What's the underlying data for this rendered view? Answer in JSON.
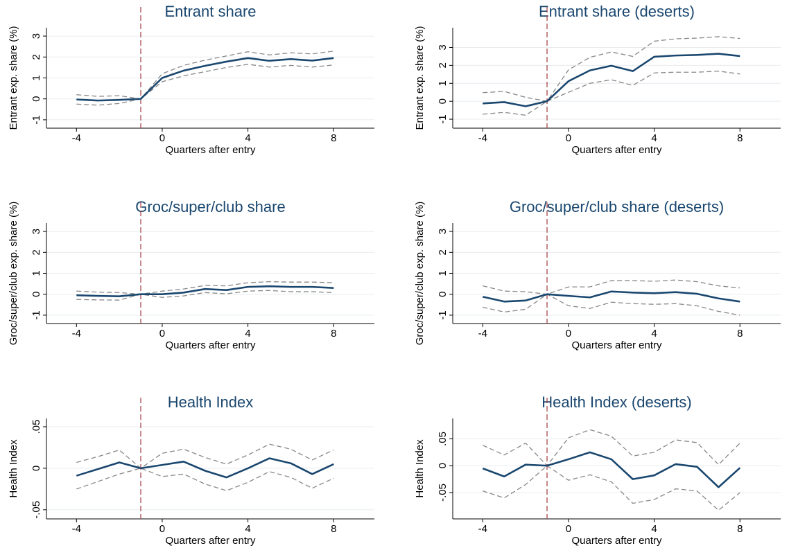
{
  "chart_data": [
    {
      "type": "line",
      "title": "Entrant share",
      "ylabel": "Entrant exp. share (%)",
      "xlabel": "Quarters after entry",
      "x": [
        -4,
        -3,
        -2,
        -1,
        0,
        1,
        2,
        3,
        4,
        5,
        6,
        7,
        8
      ],
      "xlim": [
        -5.4,
        9.9
      ],
      "xticks": [
        -4,
        0,
        4,
        8
      ],
      "ylim": [
        -1.4,
        3.4
      ],
      "yticks": [
        -1,
        0,
        1,
        2,
        3
      ],
      "grid": true,
      "vline": -1,
      "vline_color": "#a0393d",
      "series": [
        {
          "color": "#888888",
          "dash": true,
          "values": [
            0.2,
            0.12,
            0.15,
            0,
            1.2,
            1.6,
            1.85,
            2.05,
            2.25,
            2.1,
            2.2,
            2.15,
            2.28
          ]
        },
        {
          "color": "#888888",
          "dash": true,
          "values": [
            -0.25,
            -0.3,
            -0.22,
            0,
            0.82,
            1.1,
            1.3,
            1.5,
            1.65,
            1.52,
            1.6,
            1.52,
            1.62
          ]
        },
        {
          "color": "#1a476f",
          "dash": false,
          "values": [
            -0.03,
            -0.08,
            -0.05,
            0,
            1.0,
            1.35,
            1.58,
            1.78,
            1.95,
            1.82,
            1.9,
            1.83,
            1.95
          ]
        }
      ]
    },
    {
      "type": "line",
      "title": "Entrant share (deserts)",
      "ylabel": "Entrant exp. share (%)",
      "xlabel": "Quarters after entry",
      "x": [
        -4,
        -3,
        -2,
        -1,
        0,
        1,
        2,
        3,
        4,
        5,
        6,
        7,
        8
      ],
      "xlim": [
        -5.4,
        9.9
      ],
      "xticks": [
        -4,
        0,
        4,
        8
      ],
      "ylim": [
        -1.5,
        4.1
      ],
      "yticks": [
        -1,
        0,
        1,
        2,
        3
      ],
      "grid": true,
      "vline": -1,
      "vline_color": "#a0393d",
      "series": [
        {
          "color": "#888888",
          "dash": true,
          "values": [
            0.48,
            0.55,
            0.22,
            0,
            1.75,
            2.45,
            2.75,
            2.5,
            3.35,
            3.48,
            3.52,
            3.6,
            3.5
          ]
        },
        {
          "color": "#888888",
          "dash": true,
          "values": [
            -0.72,
            -0.62,
            -0.78,
            0,
            0.5,
            1.0,
            1.2,
            0.88,
            1.58,
            1.62,
            1.62,
            1.68,
            1.52
          ]
        },
        {
          "color": "#1a476f",
          "dash": false,
          "values": [
            -0.12,
            -0.05,
            -0.28,
            0,
            1.12,
            1.72,
            1.98,
            1.68,
            2.48,
            2.55,
            2.58,
            2.65,
            2.52
          ]
        }
      ]
    },
    {
      "type": "line",
      "title": "Groc/super/club share",
      "ylabel": "Groc/super/club exp. share (%)",
      "xlabel": "Quarters after entry",
      "x": [
        -4,
        -3,
        -2,
        -1,
        0,
        1,
        2,
        3,
        4,
        5,
        6,
        7,
        8
      ],
      "xlim": [
        -5.4,
        9.9
      ],
      "xticks": [
        -4,
        0,
        4,
        8
      ],
      "ylim": [
        -1.4,
        3.4
      ],
      "yticks": [
        -1,
        0,
        1,
        2,
        3
      ],
      "grid": true,
      "vline": -1,
      "vline_color": "#a0393d",
      "series": [
        {
          "color": "#888888",
          "dash": true,
          "values": [
            0.15,
            0.1,
            0.08,
            0,
            0.15,
            0.25,
            0.42,
            0.4,
            0.55,
            0.6,
            0.58,
            0.58,
            0.55
          ]
        },
        {
          "color": "#888888",
          "dash": true,
          "values": [
            -0.25,
            -0.27,
            -0.28,
            0,
            -0.15,
            -0.08,
            0.08,
            0.02,
            0.15,
            0.18,
            0.12,
            0.12,
            0.08
          ]
        },
        {
          "color": "#1a476f",
          "dash": false,
          "values": [
            -0.05,
            -0.08,
            -0.1,
            0,
            0,
            0.08,
            0.25,
            0.2,
            0.35,
            0.38,
            0.35,
            0.35,
            0.3
          ]
        }
      ]
    },
    {
      "type": "line",
      "title": "Groc/super/club share (deserts)",
      "ylabel": "Groc/super/club exp. share (%)",
      "xlabel": "Quarters after entry",
      "x": [
        -4,
        -3,
        -2,
        -1,
        0,
        1,
        2,
        3,
        4,
        5,
        6,
        7,
        8
      ],
      "xlim": [
        -5.4,
        9.9
      ],
      "xticks": [
        -4,
        0,
        4,
        8
      ],
      "ylim": [
        -1.4,
        3.4
      ],
      "yticks": [
        -1,
        0,
        1,
        2,
        3
      ],
      "grid": true,
      "vline": -1,
      "vline_color": "#a0393d",
      "series": [
        {
          "color": "#888888",
          "dash": true,
          "values": [
            0.4,
            0.15,
            0.12,
            0,
            0.35,
            0.35,
            0.65,
            0.65,
            0.62,
            0.68,
            0.6,
            0.4,
            0.3
          ]
        },
        {
          "color": "#888888",
          "dash": true,
          "values": [
            -0.62,
            -0.85,
            -0.72,
            0,
            -0.55,
            -0.68,
            -0.38,
            -0.45,
            -0.48,
            -0.45,
            -0.55,
            -0.82,
            -1.0
          ]
        },
        {
          "color": "#1a476f",
          "dash": false,
          "values": [
            -0.12,
            -0.35,
            -0.3,
            0,
            -0.08,
            -0.15,
            0.13,
            0.08,
            0.05,
            0.1,
            0.02,
            -0.2,
            -0.35
          ]
        }
      ]
    },
    {
      "type": "line",
      "title": "Health Index",
      "ylabel": "Health Index",
      "xlabel": "Quarters after entry",
      "x": [
        -4,
        -3,
        -2,
        -1,
        0,
        1,
        2,
        3,
        4,
        5,
        6,
        7,
        8
      ],
      "xlim": [
        -5.4,
        9.9
      ],
      "xticks": [
        -4,
        0,
        4,
        8
      ],
      "ylim": [
        -0.061,
        0.06
      ],
      "yticks": [
        {
          "value": -0.05,
          "label": "-.05"
        },
        0,
        {
          "value": 0.05,
          "label": ".05"
        }
      ],
      "grid": true,
      "vline": -1,
      "vline_color": "#a0393d",
      "series": [
        {
          "color": "#888888",
          "dash": true,
          "values": [
            0.007,
            0.014,
            0.022,
            0,
            0.018,
            0.023,
            0.013,
            0.005,
            0.016,
            0.029,
            0.023,
            0.01,
            0.022
          ]
        },
        {
          "color": "#888888",
          "dash": true,
          "values": [
            -0.025,
            -0.016,
            -0.007,
            0,
            -0.01,
            -0.007,
            -0.019,
            -0.027,
            -0.017,
            -0.004,
            -0.011,
            -0.024,
            -0.012
          ]
        },
        {
          "color": "#1a476f",
          "dash": false,
          "values": [
            -0.009,
            -0.001,
            0.007,
            0,
            0.004,
            0.008,
            -0.003,
            -0.011,
            0,
            0.012,
            0.006,
            -0.007,
            0.005
          ]
        }
      ]
    },
    {
      "type": "line",
      "title": "Health Index (deserts)",
      "ylabel": "Health Index",
      "xlabel": "Quarters after entry",
      "x": [
        -4,
        -3,
        -2,
        -1,
        0,
        1,
        2,
        3,
        4,
        5,
        6,
        7,
        8
      ],
      "xlim": [
        -5.4,
        9.9
      ],
      "xticks": [
        -4,
        0,
        4,
        8
      ],
      "ylim": [
        -0.099,
        0.088
      ],
      "yticks": [
        {
          "value": -0.05,
          "label": "-.05"
        },
        0,
        {
          "value": 0.05,
          "label": ".05"
        }
      ],
      "grid": true,
      "vline": -1,
      "vline_color": "#a0393d",
      "series": [
        {
          "color": "#888888",
          "dash": true,
          "values": [
            0.038,
            0.02,
            0.042,
            0,
            0.052,
            0.067,
            0.055,
            0.018,
            0.025,
            0.048,
            0.043,
            0.002,
            0.042
          ]
        },
        {
          "color": "#888888",
          "dash": true,
          "values": [
            -0.047,
            -0.06,
            -0.035,
            0,
            -0.027,
            -0.017,
            -0.03,
            -0.07,
            -0.063,
            -0.043,
            -0.047,
            -0.083,
            -0.05
          ]
        },
        {
          "color": "#1a476f",
          "dash": false,
          "values": [
            -0.005,
            -0.02,
            0.002,
            0,
            0.012,
            0.025,
            0.012,
            -0.025,
            -0.018,
            0.003,
            -0.002,
            -0.04,
            -0.004
          ]
        }
      ]
    }
  ]
}
